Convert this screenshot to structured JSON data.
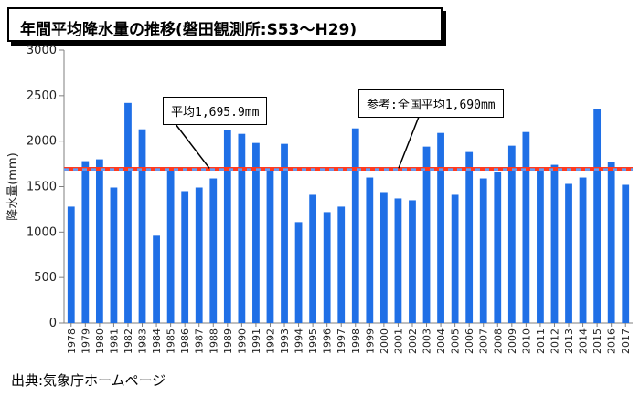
{
  "title": "年間平均降水量の推移(磐田観測所:S53〜H29)",
  "source": "出典:気象庁ホームページ",
  "chart_data": {
    "type": "bar",
    "ylabel": "降水量(mm)",
    "ylim": [
      0,
      3000
    ],
    "yticks": [
      "0",
      "500",
      "1000",
      "1500",
      "2000",
      "2500",
      "3000"
    ],
    "categories": [
      "1978",
      "1979",
      "1980",
      "1981",
      "1982",
      "1983",
      "1984",
      "1985",
      "1986",
      "1987",
      "1988",
      "1989",
      "1990",
      "1991",
      "1992",
      "1993",
      "1994",
      "1995",
      "1996",
      "1997",
      "1998",
      "1999",
      "2000",
      "2001",
      "2002",
      "2003",
      "2004",
      "2005",
      "2006",
      "2007",
      "2008",
      "2009",
      "2010",
      "2011",
      "2012",
      "2013",
      "2014",
      "2015",
      "2016",
      "2017"
    ],
    "values": [
      1280,
      1780,
      1800,
      1490,
      2420,
      2130,
      960,
      1700,
      1450,
      1490,
      1590,
      2120,
      2080,
      1980,
      1680,
      1970,
      1110,
      1410,
      1220,
      1280,
      2140,
      1600,
      1440,
      1370,
      1350,
      1940,
      2090,
      1410,
      1880,
      1590,
      1660,
      1950,
      2100,
      1690,
      1740,
      1530,
      1600,
      2350,
      1770,
      1520
    ],
    "bar_color": "#1f6fe6",
    "lines": [
      {
        "value": 1695.9,
        "label": "平均1,695.9mm",
        "color": "#ff3b1f"
      },
      {
        "value": 1690,
        "label": "参考:全国平均1,690mm",
        "color": "#5aa0ff"
      }
    ],
    "grid": false
  }
}
